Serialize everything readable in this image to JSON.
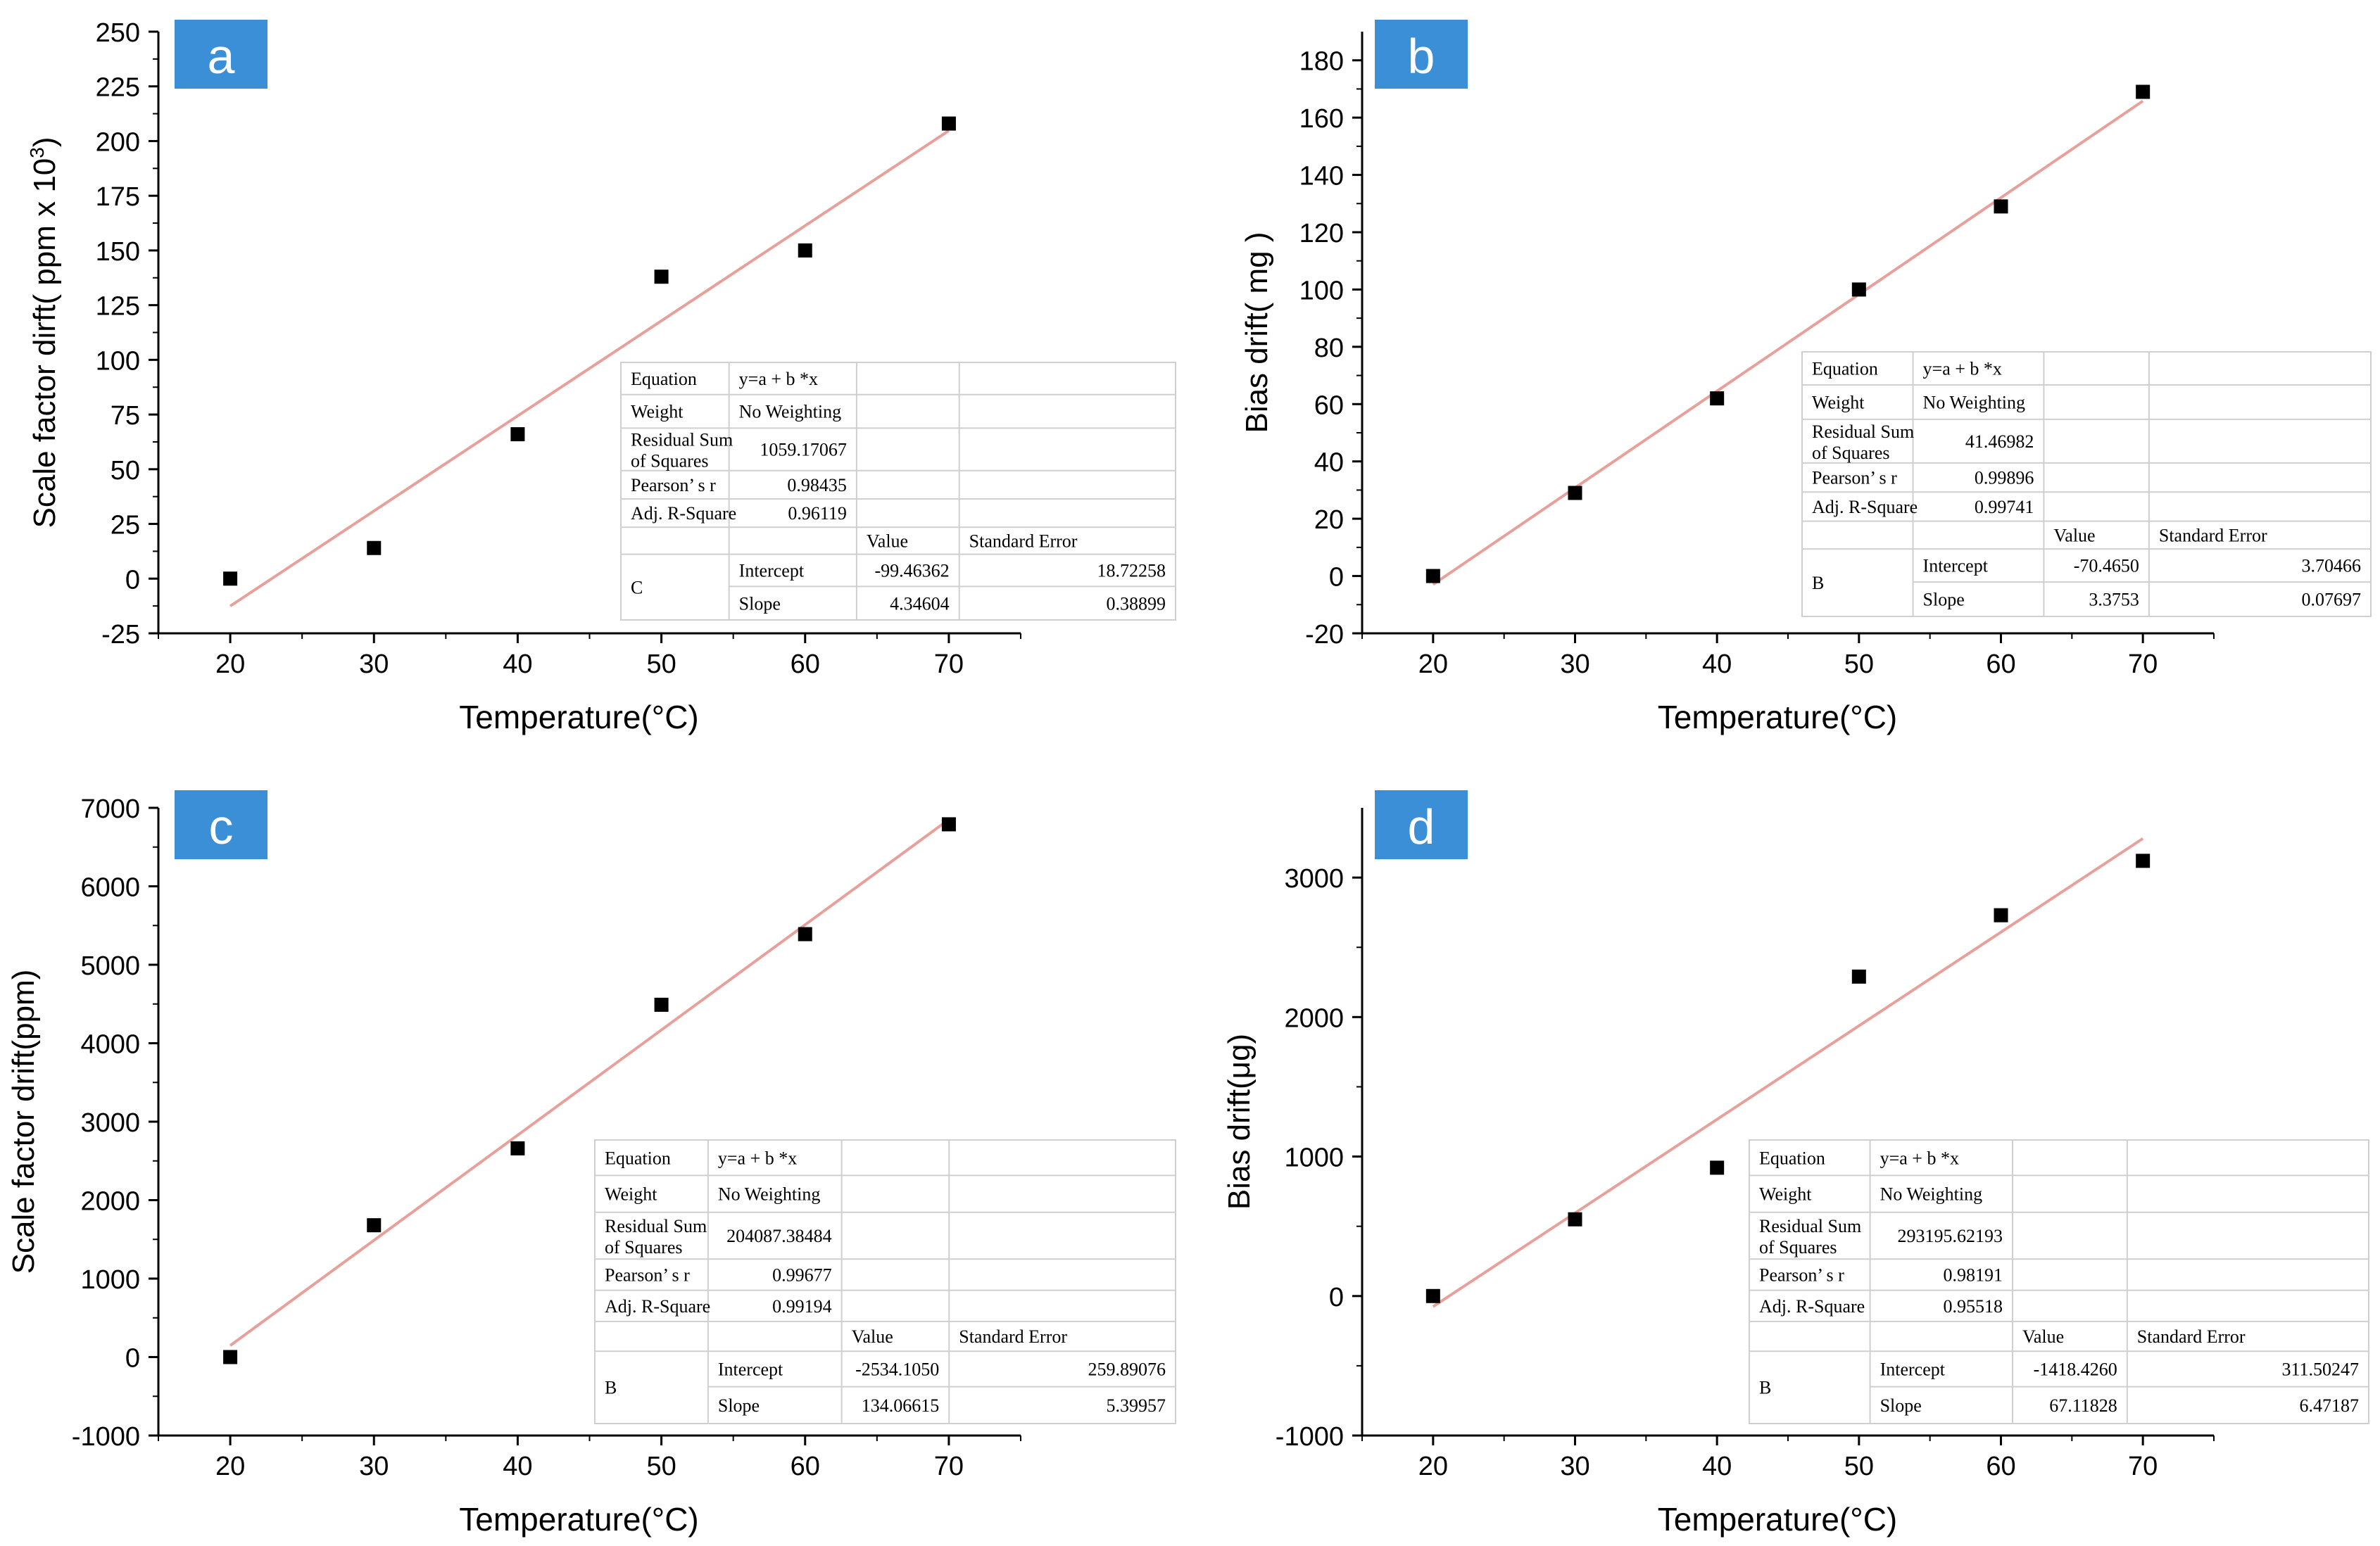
{
  "colors": {
    "point": "#000000",
    "fit_line": "#e8a09b",
    "label_bg": "#3a8fd6",
    "label_text": "#ffffff",
    "axis": "#000000",
    "table_border": "#cfcfcf"
  },
  "chart_data": [
    {
      "type": "scatter",
      "panel_label": "a",
      "xlabel": "Temperature(°C)",
      "ylabel_parts": [
        "Scale factor dirft( ppm x 10",
        "3",
        ")"
      ],
      "xlim": [
        15,
        75
      ],
      "ylim": [
        -25,
        250
      ],
      "x_ticks": [
        20,
        30,
        40,
        50,
        60,
        70
      ],
      "y_ticks": [
        -25,
        0,
        25,
        50,
        75,
        100,
        125,
        150,
        175,
        200,
        225,
        250
      ],
      "y_minor_ticks": true,
      "x": [
        20,
        30,
        40,
        50,
        60,
        70
      ],
      "y": [
        0,
        14,
        66,
        138,
        150,
        208
      ],
      "fit": {
        "intercept": -99.46362,
        "slope": 4.34604,
        "x_range": [
          20,
          70
        ]
      },
      "fit_table": {
        "equation_label": "Equation",
        "equation_value": "y=a + b *x",
        "weight_label": "Weight",
        "weight_value": "No Weighting",
        "rss_label_1": "Residual  Sum",
        "rss_label_2": "of Squares",
        "rss_value": "1059.17067",
        "pearson_label": "Pearson’ s r",
        "pearson_value": "0.98435",
        "adjr_label": "Adj. R-Square",
        "adjr_value": "0.96119",
        "col_value": "Value",
        "col_se": "Standard Error",
        "group": "C",
        "intercept_label": "Intercept",
        "intercept_value": "-99.46362",
        "intercept_se": "18.72258",
        "slope_label": "Slope",
        "slope_value": "4.34604",
        "slope_se": "0.38899"
      }
    },
    {
      "type": "scatter",
      "panel_label": "b",
      "xlabel": "Temperature(°C)",
      "ylabel_parts": [
        "Bias drift( mg )"
      ],
      "xlim": [
        15,
        75
      ],
      "ylim": [
        -20,
        190
      ],
      "x_ticks": [
        20,
        30,
        40,
        50,
        60,
        70
      ],
      "y_ticks": [
        -20,
        0,
        20,
        40,
        60,
        80,
        100,
        120,
        140,
        160,
        180
      ],
      "y_minor_ticks": true,
      "x": [
        20,
        30,
        40,
        50,
        60,
        70
      ],
      "y": [
        0,
        29,
        62,
        100,
        129,
        169
      ],
      "fit": {
        "intercept": -70.465,
        "slope": 3.3753,
        "x_range": [
          20,
          70
        ]
      },
      "fit_table": {
        "equation_label": "Equation",
        "equation_value": "y=a + b *x",
        "weight_label": "Weight",
        "weight_value": "No Weighting",
        "rss_label_1": "Residual  Sum",
        "rss_label_2": "of Squares",
        "rss_value": "41.46982",
        "pearson_label": "Pearson’ s r",
        "pearson_value": "0.99896",
        "adjr_label": "Adj. R-Square",
        "adjr_value": "0.99741",
        "col_value": "Value",
        "col_se": "Standard Error",
        "group": "B",
        "intercept_label": "Intercept",
        "intercept_value": "-70.4650",
        "intercept_se": "3.70466",
        "slope_label": "Slope",
        "slope_value": "3.3753",
        "slope_se": "0.07697"
      }
    },
    {
      "type": "scatter",
      "panel_label": "c",
      "xlabel": "Temperature(°C)",
      "ylabel_parts": [
        "Scale  factor drift(ppm)"
      ],
      "xlim": [
        15,
        75
      ],
      "ylim": [
        -1000,
        7000
      ],
      "x_ticks": [
        20,
        30,
        40,
        50,
        60,
        70
      ],
      "y_ticks": [
        -1000,
        0,
        1000,
        2000,
        3000,
        4000,
        5000,
        6000,
        7000
      ],
      "y_minor_ticks": true,
      "x": [
        20,
        30,
        40,
        50,
        60,
        70
      ],
      "y": [
        0,
        1680,
        2660,
        4490,
        5390,
        6790
      ],
      "fit": {
        "intercept": -2534.105,
        "slope": 134.06615,
        "x_range": [
          20,
          70
        ]
      },
      "fit_table": {
        "equation_label": "Equation",
        "equation_value": "y=a + b *x",
        "weight_label": "Weight",
        "weight_value": "No Weighting",
        "rss_label_1": "Residual  Sum",
        "rss_label_2": "of Squares",
        "rss_value": "204087.38484",
        "pearson_label": "Pearson’ s r",
        "pearson_value": "0.99677",
        "adjr_label": "Adj. R-Square",
        "adjr_value": "0.99194",
        "col_value": "Value",
        "col_se": "Standard Error",
        "group": "B",
        "intercept_label": "Intercept",
        "intercept_value": "-2534.1050",
        "intercept_se": "259.89076",
        "slope_label": "Slope",
        "slope_value": "134.06615",
        "slope_se": "5.39957"
      }
    },
    {
      "type": "scatter",
      "panel_label": "d",
      "xlabel": "Temperature(°C)",
      "ylabel_parts": [
        "Bias drift(μg)"
      ],
      "xlim": [
        15,
        75
      ],
      "ylim": [
        -1000,
        3500
      ],
      "x_ticks": [
        20,
        30,
        40,
        50,
        60,
        70
      ],
      "y_ticks": [
        -1000,
        0,
        1000,
        2000,
        3000
      ],
      "y_minor_ticks": true,
      "x": [
        20,
        30,
        40,
        50,
        60,
        70
      ],
      "y": [
        0,
        550,
        920,
        2290,
        2730,
        3120
      ],
      "fit": {
        "intercept": -1418.426,
        "slope": 67.11828,
        "x_range": [
          20,
          70
        ]
      },
      "fit_table": {
        "equation_label": "Equation",
        "equation_value": "y=a + b *x",
        "weight_label": "Weight",
        "weight_value": "No Weighting",
        "rss_label_1": "Residual  Sum",
        "rss_label_2": "of Squares",
        "rss_value": "293195.62193",
        "pearson_label": "Pearson’ s r",
        "pearson_value": "0.98191",
        "adjr_label": "Adj. R-Square",
        "adjr_value": "0.95518",
        "col_value": "Value",
        "col_se": "Standard Error",
        "group": "B",
        "intercept_label": "Intercept",
        "intercept_value": "-1418.4260",
        "intercept_se": "311.50247",
        "slope_label": "Slope",
        "slope_value": "67.11828",
        "slope_se": "6.47187"
      }
    }
  ]
}
